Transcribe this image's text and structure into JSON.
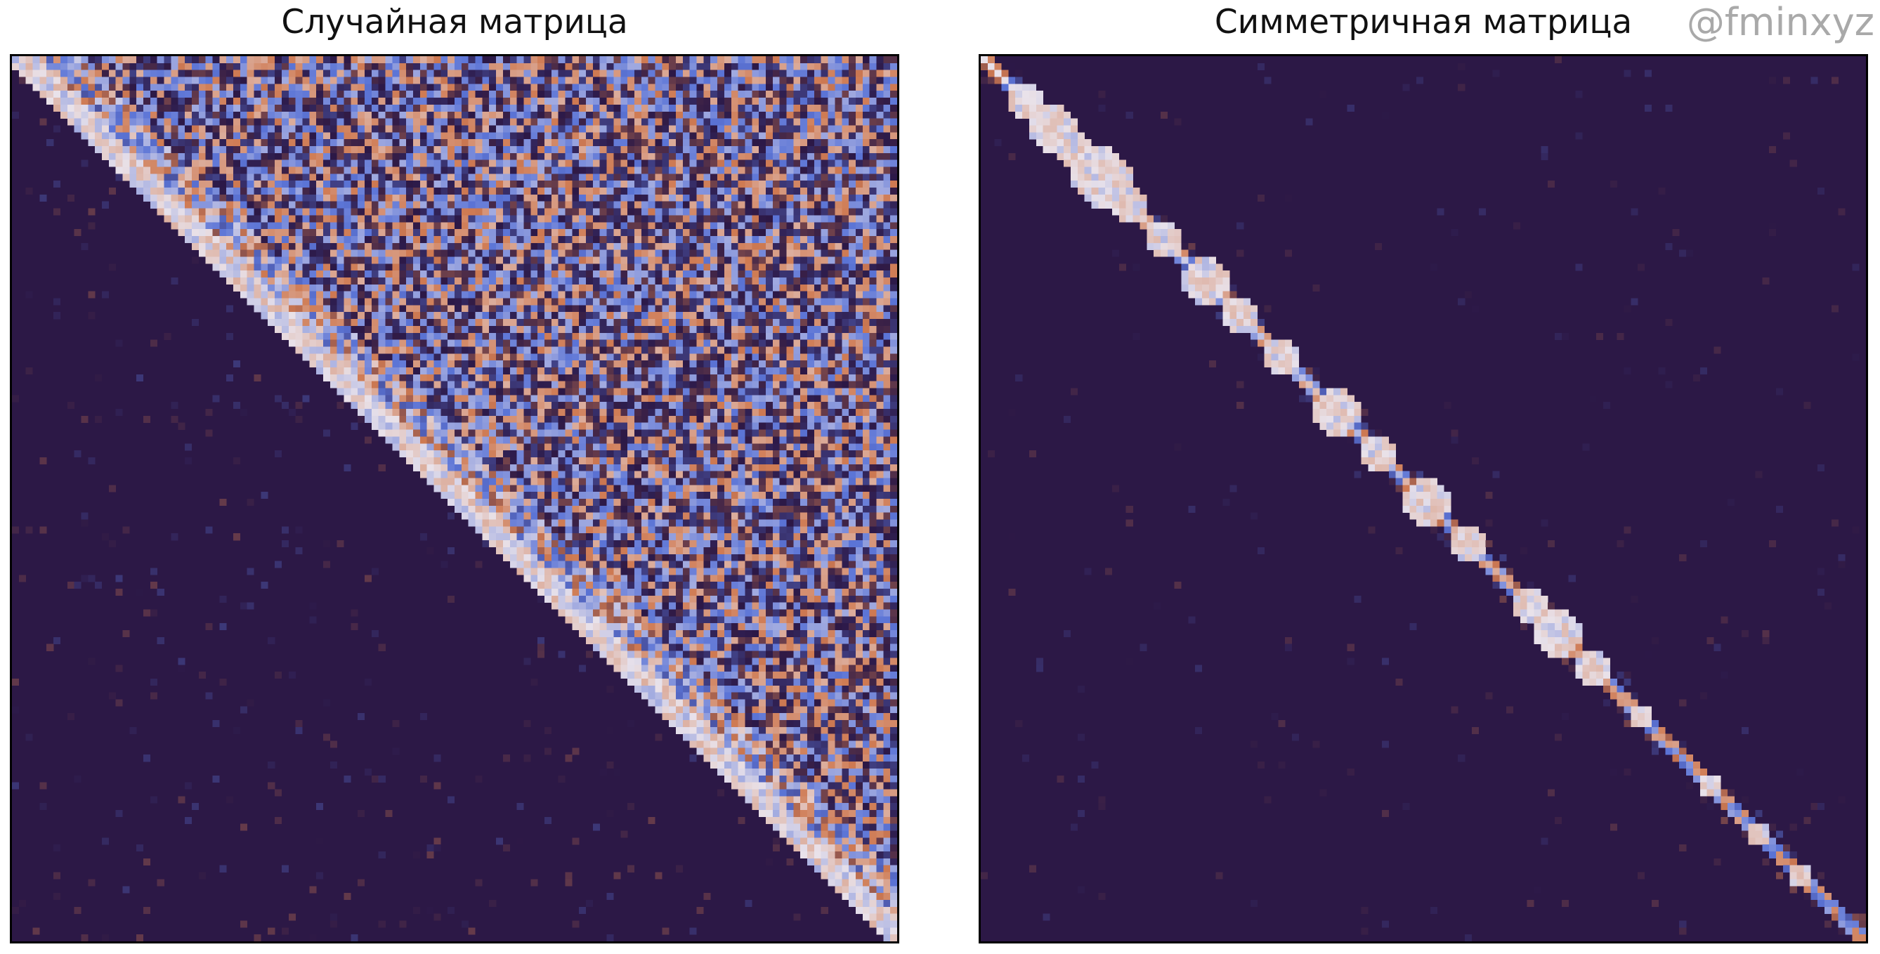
{
  "chart_data": [
    {
      "type": "heatmap",
      "title": "Случайная матрица",
      "matrix_size": 128,
      "structure": "upper-triangular",
      "xlabel": "",
      "ylabel": "",
      "ticks_visible": false,
      "grid": false,
      "colormap": "twilight_shifted",
      "colors": {
        "background": "#2c1846",
        "low": "#5b74d6",
        "mid": "#e9e2ea",
        "high": "#cf7a52"
      }
    },
    {
      "type": "heatmap",
      "title": "Симметричная матрица",
      "matrix_size": 128,
      "structure": "block-diagonal",
      "xlabel": "",
      "ylabel": "",
      "ticks_visible": false,
      "grid": false,
      "colormap": "twilight_shifted",
      "colors": {
        "background": "#2c1846",
        "low": "#5b74d6",
        "mid": "#e9e2ea",
        "high": "#cf7a52"
      }
    }
  ],
  "watermark": "@fminxyz"
}
